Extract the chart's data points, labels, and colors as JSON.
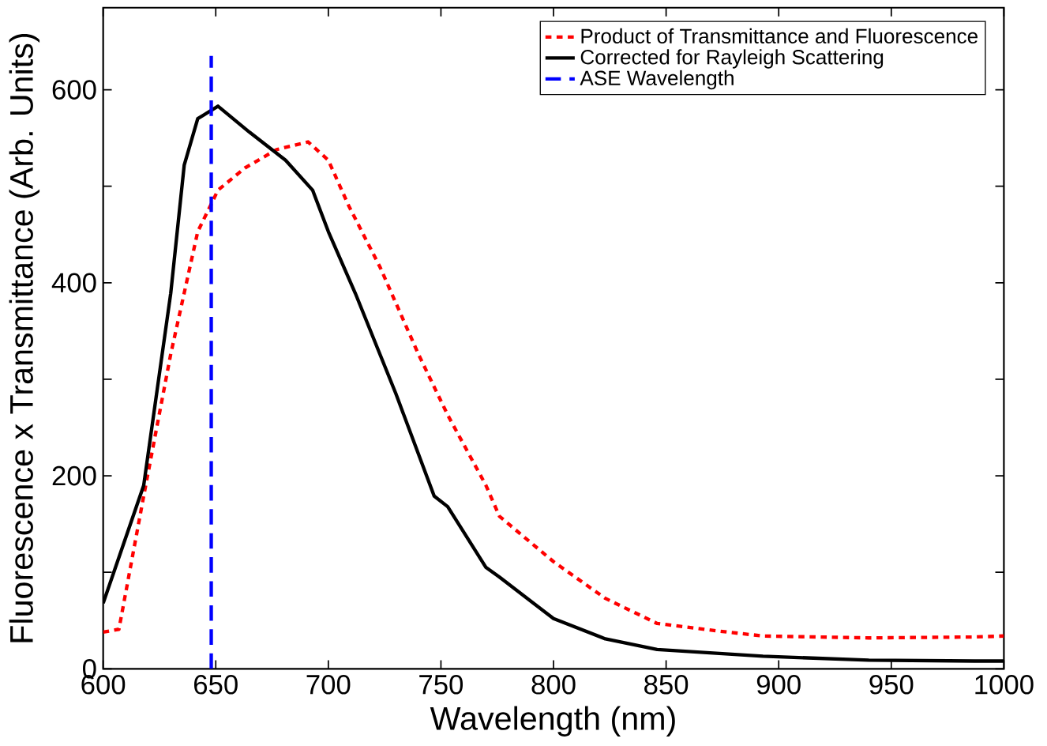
{
  "chart_data": {
    "type": "line",
    "xlabel": "Wavelength (nm)",
    "ylabel": "Fluorescence x Transmittance (Arb. Units)",
    "xlim": [
      600,
      1000
    ],
    "ylim": [
      0,
      685
    ],
    "xticks": [
      600,
      650,
      700,
      750,
      800,
      850,
      900,
      950,
      1000
    ],
    "yticks": [
      0,
      {
        "value": 100,
        "label": null
      },
      200,
      {
        "value": 300,
        "label": null
      },
      400,
      {
        "value": 500,
        "label": null
      },
      600
    ],
    "legend": "top right",
    "grid": false,
    "series": [
      {
        "name": "Product of Transmittance and Fluorescence",
        "color": "#ff0000",
        "line_style": "dotted",
        "x": [
          600,
          607,
          618,
          630,
          642,
          651,
          663,
          677,
          691,
          700,
          709,
          723,
          740,
          753,
          770,
          776,
          800,
          823,
          846,
          870,
          893,
          940,
          987,
          1000
        ],
        "values": [
          38,
          41,
          179,
          326,
          453,
          496,
          519,
          538,
          546,
          527,
          480,
          416,
          326,
          263,
          190,
          158,
          111,
          73,
          47,
          40,
          34,
          32,
          33,
          34
        ]
      },
      {
        "name": "Corrected for Rayleigh Scattering",
        "color": "#000000",
        "line_style": "solid",
        "x": [
          600,
          618,
          630,
          636,
          642,
          651,
          665,
          681,
          693,
          700,
          712,
          730,
          747,
          753,
          770,
          776,
          800,
          823,
          846,
          893,
          940,
          987,
          1000
        ],
        "values": [
          68,
          190,
          389,
          522,
          570,
          583,
          556,
          527,
          496,
          453,
          389,
          285,
          179,
          168,
          105,
          95,
          52,
          31,
          20,
          13,
          9,
          8,
          8
        ]
      },
      {
        "name": "ASE Wavelength",
        "color": "#0000ff",
        "line_style": "dashed",
        "x": [
          648,
          648
        ],
        "values": [
          0,
          635
        ]
      }
    ]
  }
}
